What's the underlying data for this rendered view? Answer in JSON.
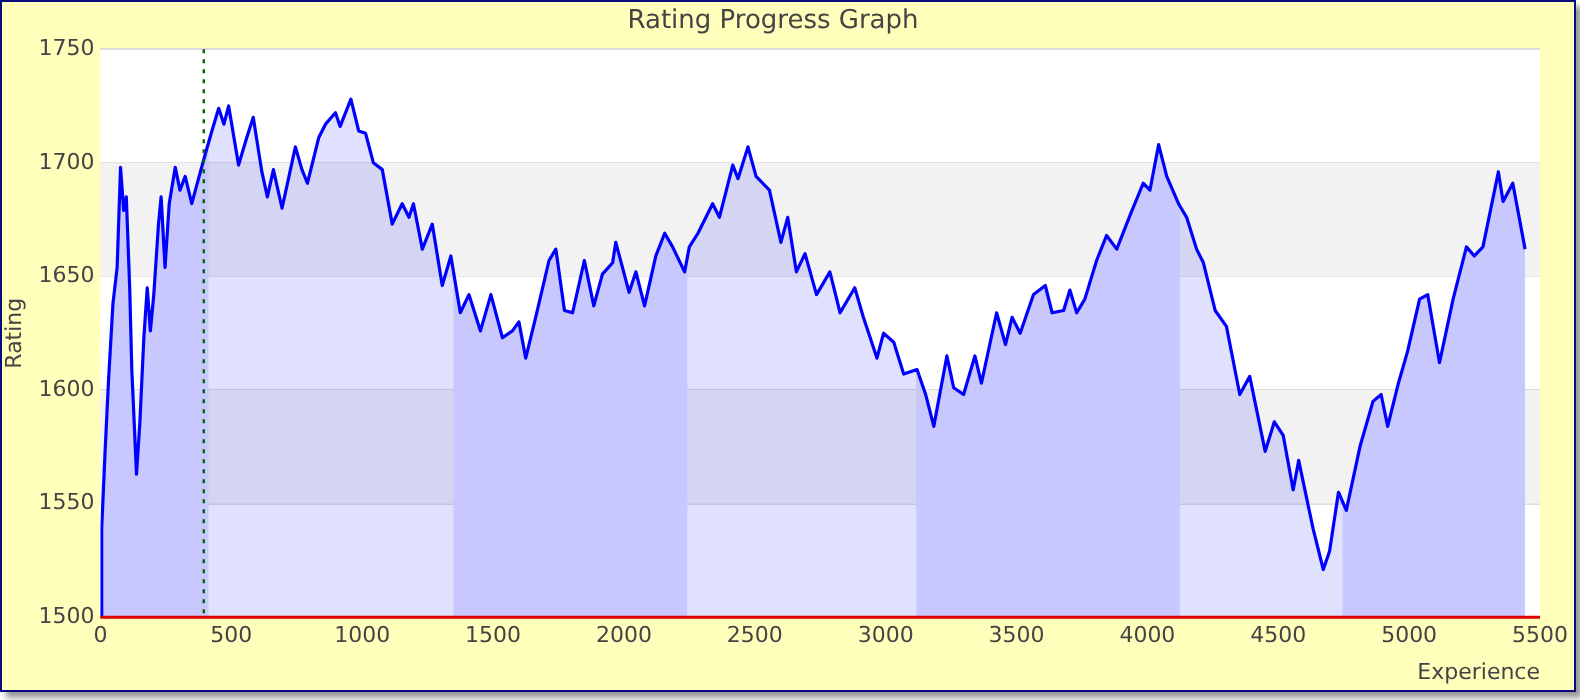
{
  "chart_data": {
    "type": "area",
    "title": "Rating Progress Graph",
    "xlabel": "Experience",
    "ylabel": "Rating",
    "xlim": [
      0,
      5500
    ],
    "xticks": [
      0,
      500,
      1000,
      1500,
      2000,
      2500,
      3000,
      3500,
      4000,
      4500,
      5000,
      5500
    ],
    "ylim": [
      1500,
      1750
    ],
    "yticks": [
      1500,
      1550,
      1600,
      1650,
      1700,
      1750
    ],
    "grid": "y",
    "legend": false,
    "series": [
      {
        "color": "#0000ff",
        "x": [
          0,
          5,
          18,
          31,
          48,
          64,
          77,
          89,
          99,
          112,
          120,
          138,
          151,
          166,
          179,
          191,
          204,
          222,
          232,
          247,
          263,
          286,
          304,
          324,
          349,
          375,
          401,
          426,
          452,
          472,
          490,
          528,
          559,
          584,
          617,
          638,
          661,
          694,
          745,
          770,
          791,
          834,
          860,
          898,
          916,
          957,
          987,
          1013,
          1043,
          1077,
          1115,
          1153,
          1179,
          1196,
          1230,
          1268,
          1306,
          1339,
          1375,
          1408,
          1452,
          1492,
          1536,
          1574,
          1599,
          1625,
          1663,
          1714,
          1740,
          1773,
          1804,
          1849,
          1885,
          1918,
          1957,
          1969,
          2020,
          2046,
          2079,
          2122,
          2156,
          2186,
          2232,
          2250,
          2283,
          2339,
          2365,
          2416,
          2436,
          2474,
          2505,
          2556,
          2600,
          2626,
          2659,
          2692,
          2736,
          2787,
          2826,
          2882,
          2915,
          2967,
          2992,
          3031,
          3069,
          3120,
          3153,
          3184,
          3234,
          3260,
          3298,
          3341,
          3366,
          3424,
          3458,
          3483,
          3514,
          3565,
          3610,
          3636,
          3680,
          3704,
          3730,
          3761,
          3806,
          3844,
          3883,
          3934,
          3984,
          4010,
          4043,
          4074,
          4119,
          4150,
          4188,
          4214,
          4259,
          4302,
          4353,
          4391,
          4450,
          4485,
          4519,
          4557,
          4578,
          4633,
          4672,
          4696,
          4730,
          4760,
          4812,
          4862,
          4893,
          4918,
          4959,
          4994,
          5040,
          5071,
          5116,
          5168,
          5219,
          5249,
          5282,
          5341,
          5359,
          5396,
          5443
        ],
        "values": [
          1500,
          1539,
          1573,
          1604,
          1638,
          1654,
          1698,
          1679,
          1685,
          1645,
          1609,
          1563,
          1586,
          1623,
          1645,
          1626,
          1642,
          1673,
          1685,
          1654,
          1682,
          1698,
          1688,
          1694,
          1682,
          1693,
          1704,
          1714,
          1724,
          1717,
          1725,
          1699,
          1711,
          1720,
          1696,
          1685,
          1697,
          1680,
          1707,
          1697,
          1691,
          1711,
          1717,
          1722,
          1716,
          1728,
          1714,
          1713,
          1700,
          1697,
          1673,
          1682,
          1676,
          1682,
          1662,
          1673,
          1646,
          1659,
          1634,
          1642,
          1626,
          1642,
          1623,
          1626,
          1630,
          1614,
          1632,
          1657,
          1662,
          1635,
          1634,
          1657,
          1637,
          1651,
          1656,
          1665,
          1643,
          1652,
          1637,
          1659,
          1669,
          1663,
          1652,
          1663,
          1669,
          1682,
          1676,
          1699,
          1693,
          1707,
          1694,
          1688,
          1665,
          1676,
          1652,
          1660,
          1642,
          1652,
          1634,
          1645,
          1632,
          1614,
          1625,
          1621,
          1607,
          1609,
          1598,
          1584,
          1615,
          1601,
          1598,
          1615,
          1603,
          1634,
          1620,
          1632,
          1625,
          1642,
          1646,
          1634,
          1635,
          1644,
          1634,
          1640,
          1657,
          1668,
          1662,
          1677,
          1691,
          1688,
          1708,
          1694,
          1682,
          1676,
          1662,
          1656,
          1635,
          1628,
          1598,
          1606,
          1573,
          1586,
          1580,
          1556,
          1569,
          1539,
          1521,
          1529,
          1555,
          1547,
          1575,
          1595,
          1598,
          1584,
          1603,
          1617,
          1640,
          1642,
          1612,
          1640,
          1663,
          1659,
          1663,
          1696,
          1683,
          1691,
          1662
        ]
      }
    ],
    "bands": [
      {
        "axis": "y",
        "from": 1550,
        "to": 1600,
        "color": "#f2f2f2"
      },
      {
        "axis": "y",
        "from": 1650,
        "to": 1700,
        "color": "#f2f2f2"
      },
      {
        "axis": "x",
        "from": 0,
        "to": 413,
        "color": "#e4e4fe"
      },
      {
        "axis": "x",
        "from": 1349,
        "to": 2242,
        "color": "#e4e4fe"
      },
      {
        "axis": "x",
        "from": 3117,
        "to": 4124,
        "color": "#e4e4fe"
      },
      {
        "axis": "x",
        "from": 4746,
        "to": 5443,
        "color": "#e4e4fe"
      }
    ],
    "ref_lines": [
      {
        "axis": "x",
        "value": 395,
        "color": "#006600",
        "line_style": "dotted"
      }
    ]
  }
}
